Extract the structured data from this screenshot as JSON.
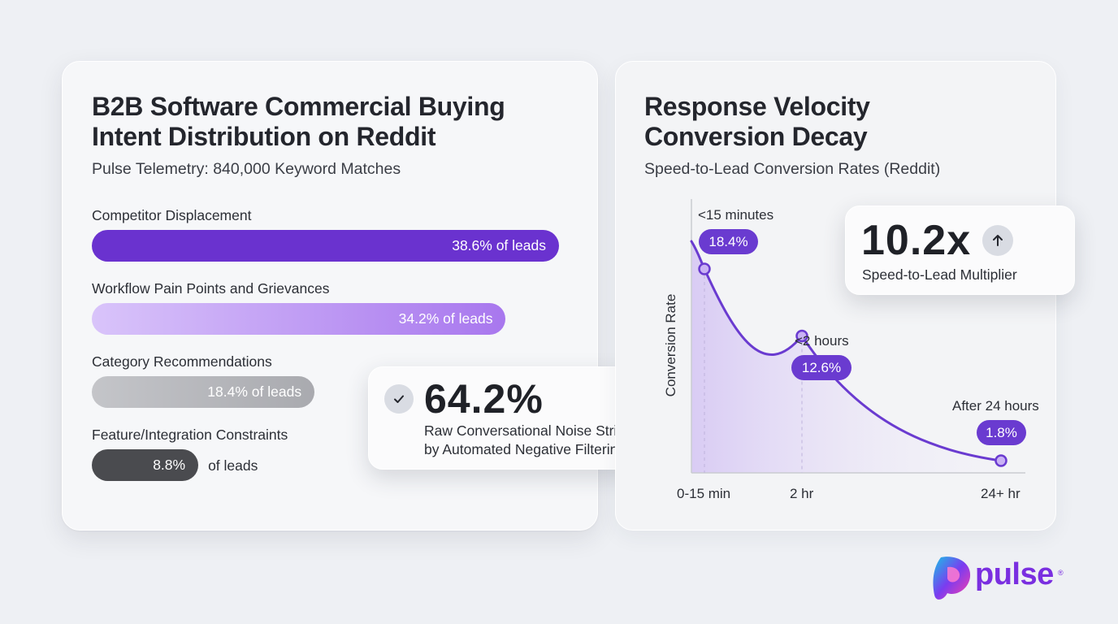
{
  "left": {
    "title_line1": "B2B Software Commercial Buying",
    "title_line2": "Intent Distribution on Reddit",
    "subtitle": "Pulse Telemetry: 840,000 Keyword Matches"
  },
  "noise_card": {
    "icon": "check-icon",
    "value": "64.2%",
    "line1": "Raw Conversational Noise Stripped",
    "line2": "by Automated Negative Filtering"
  },
  "right": {
    "title_line1": "Response Velocity",
    "title_line2": "Conversion Decay",
    "subtitle": "Speed-to-Lead Conversion Rates (Reddit)"
  },
  "multiplier_card": {
    "value": "10.2x",
    "icon": "arrow-up-icon",
    "label": "Speed-to-Lead Multiplier"
  },
  "brand": {
    "name": "pulse",
    "reg": "®"
  },
  "chart_data": [
    {
      "type": "bar",
      "orientation": "horizontal",
      "categories": [
        "Competitor Displacement",
        "Workflow Pain Points and Grievances",
        "Category Recommendations",
        "Feature/Integration Constraints"
      ],
      "values": [
        38.6,
        34.2,
        18.4,
        8.8
      ],
      "value_labels": [
        "38.6% of leads",
        "34.2% of leads",
        "18.4% of leads",
        "8.8%"
      ],
      "outside_suffix": "of leads",
      "colors": [
        "#6a32cf",
        "#c39cf6",
        "#b4b5ba",
        "#4a4b4f"
      ],
      "unit": "% of leads",
      "grid": false
    },
    {
      "type": "line",
      "ylabel": "Conversion Rate",
      "x_ticks": [
        "0-15 min",
        "2 hr",
        "24+ hr"
      ],
      "points": [
        {
          "label": "<15 minutes",
          "value": 18.4,
          "display": "18.4%"
        },
        {
          "label": "<2 hours",
          "value": 12.6,
          "display": "12.6%"
        },
        {
          "label": "After 24 hours",
          "value": 1.8,
          "display": "1.8%"
        }
      ],
      "color": "#6a3bd0",
      "grid": false
    }
  ]
}
